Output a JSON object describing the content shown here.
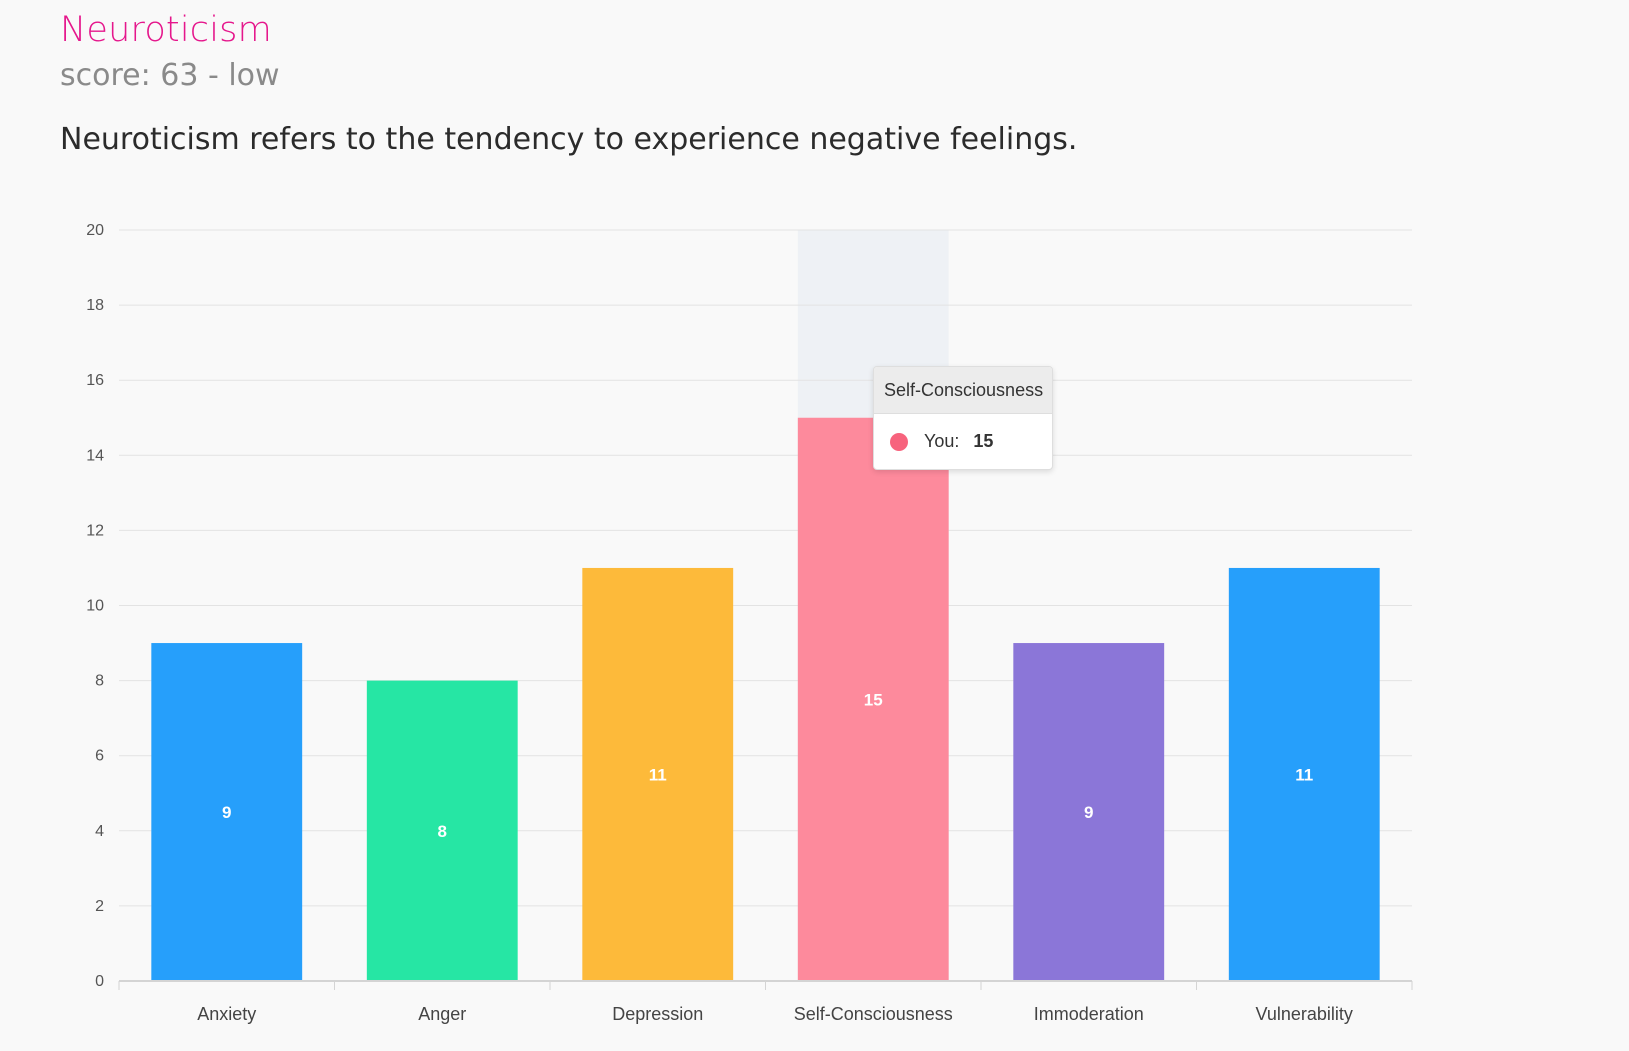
{
  "header": {
    "title": "Neuroticism",
    "score_text": "score: 63 - low",
    "description": "Neuroticism refers to the tendency to experience negative feelings."
  },
  "colors": {
    "title": "#e5178c",
    "highlight_band": "#eef1f5"
  },
  "tooltip": {
    "title": "Self-Consciousness",
    "series_label": "You:",
    "value": "15",
    "dot_color": "#f7637d"
  },
  "chart_data": {
    "type": "bar",
    "categories": [
      "Anxiety",
      "Anger",
      "Depression",
      "Self-Consciousness",
      "Immoderation",
      "Vulnerability"
    ],
    "series": [
      {
        "name": "You",
        "values": [
          9,
          8,
          11,
          15,
          9,
          11
        ]
      }
    ],
    "colors": [
      "#269ffb",
      "#26e6a4",
      "#fdba3a",
      "#fd8a9c",
      "#8b76d8",
      "#269ffb"
    ],
    "title": "",
    "xlabel": "",
    "ylabel": "",
    "ylim": [
      0,
      20
    ],
    "yticks": [
      0,
      2,
      4,
      6,
      8,
      10,
      12,
      14,
      16,
      18,
      20
    ],
    "grid": true,
    "data_labels": true,
    "highlighted_category": "Self-Consciousness"
  }
}
